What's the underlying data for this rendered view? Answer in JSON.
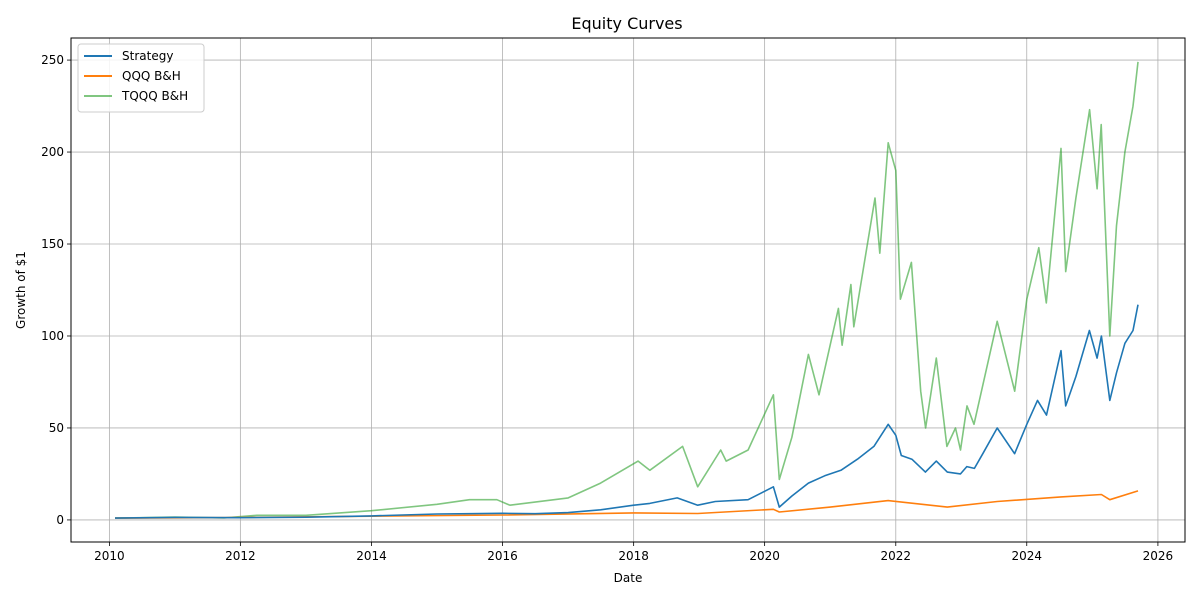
{
  "chart_data": {
    "type": "line",
    "title": "Equity Curves",
    "xlabel": "Date",
    "ylabel": "Growth of $1",
    "xlim": [
      "2009-06-01",
      "2026-06-01"
    ],
    "ylim": [
      -12,
      262
    ],
    "x_ticks": [
      "2010",
      "2012",
      "2014",
      "2016",
      "2018",
      "2020",
      "2022",
      "2024",
      "2026"
    ],
    "y_ticks": [
      0,
      50,
      100,
      150,
      200,
      250
    ],
    "grid": true,
    "legend_position": "upper-left",
    "series": [
      {
        "name": "Strategy",
        "color": "#1f77b4",
        "opacity": 1,
        "points": [
          [
            "2010-02-01",
            1
          ],
          [
            "2011-01-01",
            1.4
          ],
          [
            "2012-01-01",
            1.2
          ],
          [
            "2013-01-01",
            1.5
          ],
          [
            "2014-01-01",
            2.2
          ],
          [
            "2015-01-01",
            3.2
          ],
          [
            "2016-01-01",
            3.6
          ],
          [
            "2016-07-01",
            3.4
          ],
          [
            "2017-01-01",
            4
          ],
          [
            "2017-07-01",
            5.5
          ],
          [
            "2018-01-01",
            8
          ],
          [
            "2018-04-01",
            9
          ],
          [
            "2018-09-01",
            12
          ],
          [
            "2018-12-24",
            8
          ],
          [
            "2019-04-01",
            10
          ],
          [
            "2019-10-01",
            11
          ],
          [
            "2020-02-19",
            18
          ],
          [
            "2020-03-23",
            7
          ],
          [
            "2020-06-01",
            13
          ],
          [
            "2020-09-01",
            20
          ],
          [
            "2020-12-01",
            24
          ],
          [
            "2021-03-01",
            27
          ],
          [
            "2021-06-01",
            33
          ],
          [
            "2021-09-01",
            40
          ],
          [
            "2021-11-20",
            52
          ],
          [
            "2022-01-01",
            46
          ],
          [
            "2022-02-01",
            35
          ],
          [
            "2022-04-01",
            33
          ],
          [
            "2022-06-15",
            26
          ],
          [
            "2022-08-15",
            32
          ],
          [
            "2022-10-15",
            26
          ],
          [
            "2022-12-28",
            25
          ],
          [
            "2023-02-01",
            29
          ],
          [
            "2023-03-15",
            28
          ],
          [
            "2023-05-01",
            36
          ],
          [
            "2023-07-20",
            50
          ],
          [
            "2023-10-25",
            36
          ],
          [
            "2024-01-01",
            52
          ],
          [
            "2024-03-01",
            65
          ],
          [
            "2024-04-20",
            57
          ],
          [
            "2024-07-10",
            92
          ],
          [
            "2024-08-05",
            62
          ],
          [
            "2024-10-01",
            78
          ],
          [
            "2024-12-15",
            103
          ],
          [
            "2025-01-27",
            88
          ],
          [
            "2025-02-20",
            100
          ],
          [
            "2025-04-08",
            65
          ],
          [
            "2025-05-15",
            80
          ],
          [
            "2025-07-01",
            96
          ],
          [
            "2025-08-15",
            103
          ],
          [
            "2025-09-12",
            117
          ]
        ]
      },
      {
        "name": "QQQ B&H",
        "color": "#ff7f0e",
        "opacity": 1,
        "points": [
          [
            "2010-02-01",
            1
          ],
          [
            "2012-01-01",
            1.3
          ],
          [
            "2014-01-01",
            2.0
          ],
          [
            "2016-01-01",
            2.7
          ],
          [
            "2018-01-01",
            3.8
          ],
          [
            "2018-12-24",
            3.5
          ],
          [
            "2020-02-19",
            5.8
          ],
          [
            "2020-03-23",
            4.3
          ],
          [
            "2021-01-01",
            7
          ],
          [
            "2021-11-20",
            10.5
          ],
          [
            "2022-10-15",
            7
          ],
          [
            "2023-07-20",
            10
          ],
          [
            "2024-07-10",
            12.5
          ],
          [
            "2025-02-20",
            13.8
          ],
          [
            "2025-04-08",
            11
          ],
          [
            "2025-09-12",
            15.8
          ]
        ]
      },
      {
        "name": "TQQQ B&H",
        "color": "#2ca02c",
        "opacity": 0.6,
        "points": [
          [
            "2010-02-01",
            1
          ],
          [
            "2011-01-01",
            1.6
          ],
          [
            "2011-10-01",
            1.1
          ],
          [
            "2012-04-01",
            2.5
          ],
          [
            "2013-01-01",
            2.5
          ],
          [
            "2014-01-01",
            5
          ],
          [
            "2015-01-01",
            8.5
          ],
          [
            "2015-07-01",
            11
          ],
          [
            "2015-12-01",
            11
          ],
          [
            "2016-02-11",
            8
          ],
          [
            "2017-01-01",
            12
          ],
          [
            "2017-07-01",
            20
          ],
          [
            "2018-01-26",
            32
          ],
          [
            "2018-04-01",
            27
          ],
          [
            "2018-10-01",
            40
          ],
          [
            "2018-12-24",
            18
          ],
          [
            "2019-05-01",
            38
          ],
          [
            "2019-06-01",
            32
          ],
          [
            "2019-10-01",
            38
          ],
          [
            "2020-02-19",
            68
          ],
          [
            "2020-03-23",
            22
          ],
          [
            "2020-06-01",
            45
          ],
          [
            "2020-09-01",
            90
          ],
          [
            "2020-10-30",
            68
          ],
          [
            "2021-02-15",
            115
          ],
          [
            "2021-03-08",
            95
          ],
          [
            "2021-04-26",
            128
          ],
          [
            "2021-05-12",
            105
          ],
          [
            "2021-09-07",
            175
          ],
          [
            "2021-10-04",
            145
          ],
          [
            "2021-11-20",
            205
          ],
          [
            "2022-01-01",
            190
          ],
          [
            "2022-01-27",
            120
          ],
          [
            "2022-03-29",
            140
          ],
          [
            "2022-05-20",
            70
          ],
          [
            "2022-06-16",
            50
          ],
          [
            "2022-08-15",
            88
          ],
          [
            "2022-10-13",
            40
          ],
          [
            "2022-11-30",
            50
          ],
          [
            "2022-12-28",
            38
          ],
          [
            "2023-02-02",
            62
          ],
          [
            "2023-03-13",
            52
          ],
          [
            "2023-07-20",
            108
          ],
          [
            "2023-10-26",
            70
          ],
          [
            "2024-01-01",
            120
          ],
          [
            "2024-03-08",
            148
          ],
          [
            "2024-04-19",
            118
          ],
          [
            "2024-07-10",
            202
          ],
          [
            "2024-08-05",
            135
          ],
          [
            "2024-10-01",
            175
          ],
          [
            "2024-12-16",
            223
          ],
          [
            "2025-01-27",
            180
          ],
          [
            "2025-02-19",
            215
          ],
          [
            "2025-04-08",
            100
          ],
          [
            "2025-05-15",
            160
          ],
          [
            "2025-07-01",
            200
          ],
          [
            "2025-08-15",
            225
          ],
          [
            "2025-09-12",
            249
          ]
        ]
      }
    ]
  }
}
